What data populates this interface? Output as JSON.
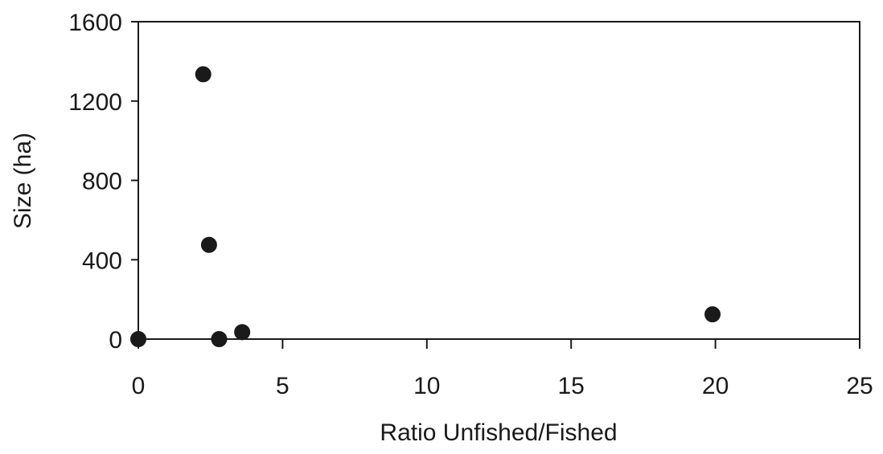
{
  "chart_data": {
    "type": "scatter",
    "title": "",
    "xlabel": "Ratio Unfished/Fished",
    "ylabel": "Size (ha)",
    "xlim": [
      0,
      25
    ],
    "ylim": [
      0,
      1600
    ],
    "x_ticks": [
      0,
      5,
      10,
      15,
      20,
      25
    ],
    "y_ticks": [
      0,
      400,
      800,
      1200,
      1600
    ],
    "x_tick_labels": [
      "0",
      "5",
      "10",
      "15",
      "20",
      "25"
    ],
    "y_tick_labels": [
      "0",
      "400",
      "800",
      "1200",
      "1600"
    ],
    "grid": false,
    "legend": "none",
    "series": [
      {
        "points": [
          {
            "x": 0,
            "y": 0
          },
          {
            "x": 2.25,
            "y": 1335
          },
          {
            "x": 2.45,
            "y": 475
          },
          {
            "x": 2.8,
            "y": 0
          },
          {
            "x": 3.6,
            "y": 35
          },
          {
            "x": 19.9,
            "y": 125
          }
        ],
        "color": "#1a1a1a"
      }
    ]
  }
}
